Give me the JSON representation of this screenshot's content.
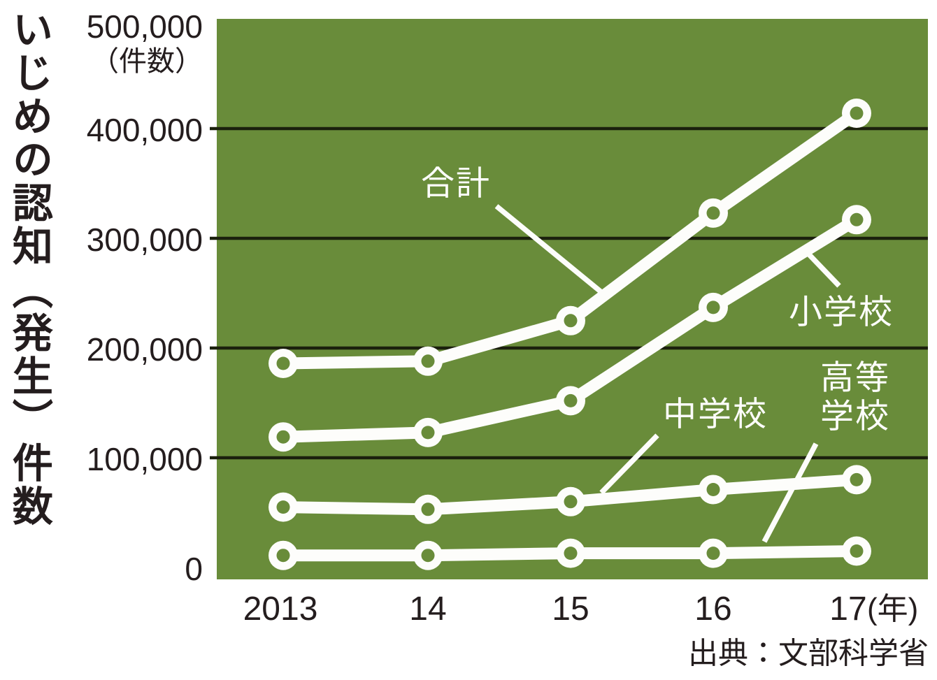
{
  "title": "いじめの認知（発生）件数",
  "y_axis": {
    "unit_label": "（件数）",
    "tick_labels": [
      "0",
      "100,000",
      "200,000",
      "300,000",
      "400,000",
      "500,000"
    ],
    "tick_values": [
      0,
      100000,
      200000,
      300000,
      400000,
      500000
    ]
  },
  "x_axis": {
    "labels": [
      "2013",
      "14",
      "15",
      "16",
      "17"
    ],
    "suffix": "(年)"
  },
  "source": "出典：文部科学省",
  "colors": {
    "plot_background": "#698c3a",
    "gridline": "#1b200d",
    "series_line": "#fdfdfb",
    "series_label_text": "#fdfdfb",
    "axis_text": "#241d1e"
  },
  "chart_data": {
    "type": "line",
    "title": "いじめの認知（発生）件数",
    "xlabel": "年",
    "ylabel": "件数",
    "x": [
      2013,
      2014,
      2015,
      2016,
      2017
    ],
    "x_tick_labels": [
      "2013",
      "14",
      "15",
      "16",
      "17"
    ],
    "ylim": [
      0,
      500000
    ],
    "grid": true,
    "gridline_values": [
      100000,
      200000,
      300000,
      400000
    ],
    "legend_position": "inline-callout-labels",
    "marker_style": "white-donut",
    "series": [
      {
        "name": "合計",
        "values": [
          186000,
          188000,
          225000,
          323000,
          414000
        ]
      },
      {
        "name": "小学校",
        "values": [
          119000,
          123000,
          152000,
          237000,
          317000
        ]
      },
      {
        "name": "中学校",
        "values": [
          55000,
          53000,
          60000,
          71000,
          80000
        ]
      },
      {
        "name": "高等学校",
        "values": [
          11000,
          11000,
          13000,
          13000,
          15000
        ]
      }
    ],
    "source": "出典：文部科学省"
  }
}
